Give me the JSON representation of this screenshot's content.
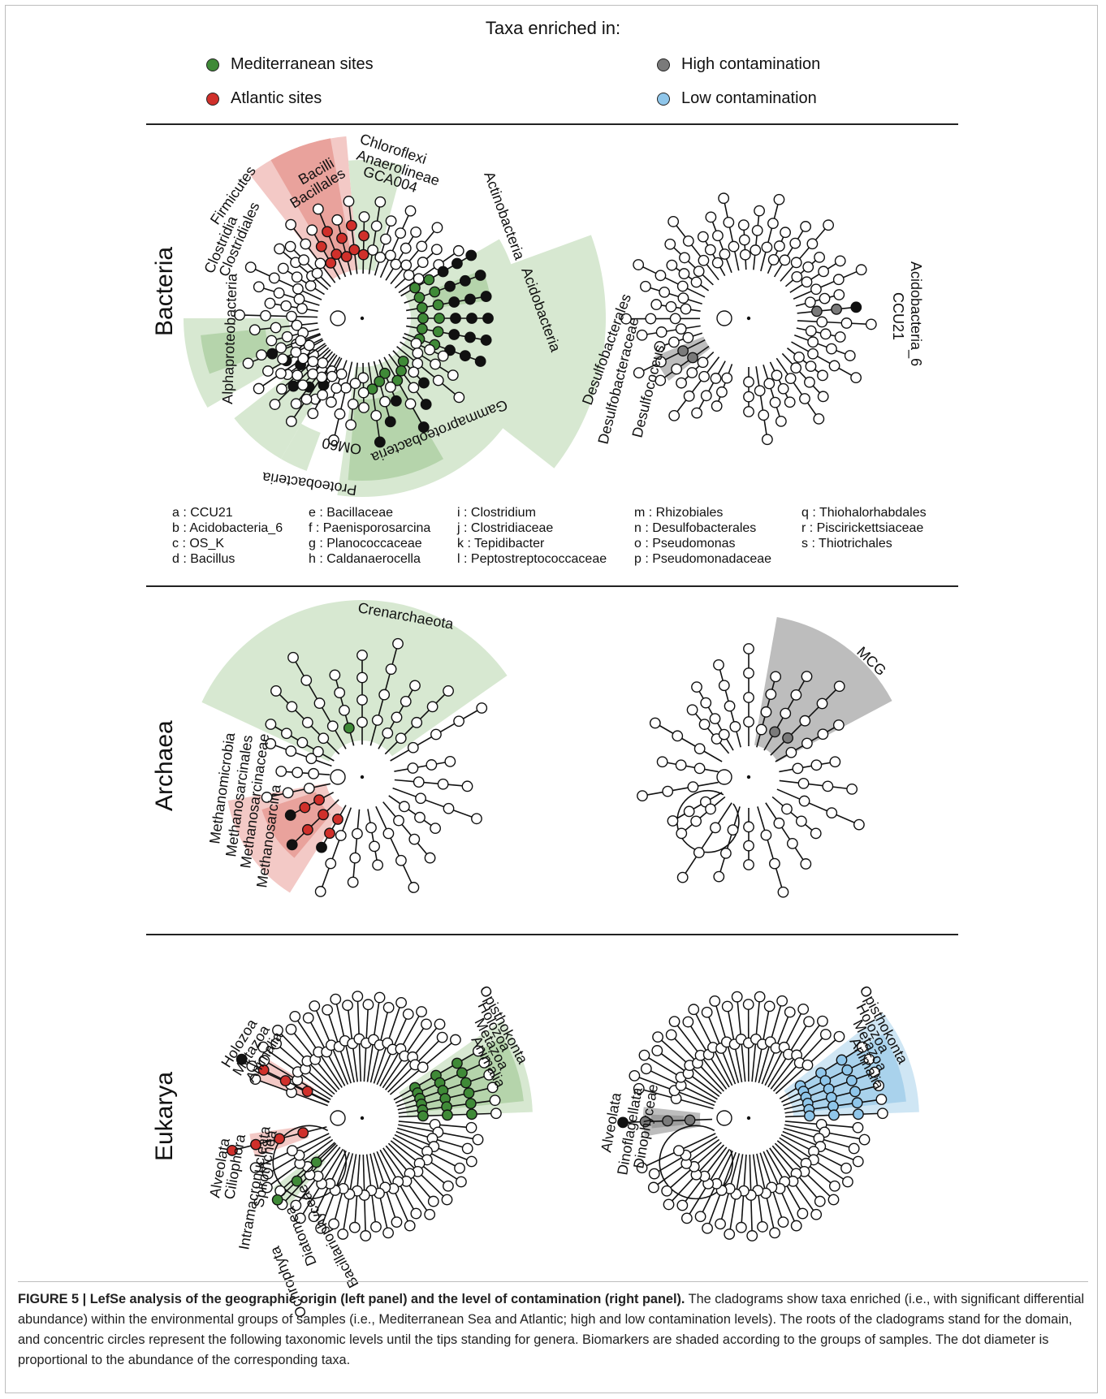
{
  "legend": {
    "title": "Taxa enriched in:",
    "items": [
      {
        "label": "Mediterranean sites",
        "color": "#3f8a37"
      },
      {
        "label": "Atlantic sites",
        "color": "#d0302b"
      },
      {
        "label": "High contamination",
        "color": "#7a7a7a"
      },
      {
        "label": "Low contamination",
        "color": "#8fc6ea"
      }
    ]
  },
  "rows": {
    "bacteria": "Bacteria",
    "archaea": "Archaea",
    "eukarya": "Eukarya"
  },
  "bacteria_left_labels": {
    "chloroflexi": "Chloroflexi",
    "anaerolineae": "Anaerolineae",
    "gca004": "GCA004",
    "actinobacteria": "Actinobacteria",
    "acidobacteria": "Acidobacteria",
    "firmicutes": "Firmicutes",
    "bacilli": "Bacilli",
    "bacillales": "Bacillales",
    "clostridia": "Clostridia",
    "clostridiales": "Clostridiales",
    "alphaproteobacteria": "Alphaproteobacteria",
    "om60": "OM60",
    "proteobacteria": "Proteobacteria",
    "gammaproteobacteria": "Gammaproteobacteria",
    "letters": [
      "a",
      "b",
      "c",
      "d",
      "e",
      "f",
      "g",
      "h",
      "i",
      "j",
      "k",
      "l",
      "m",
      "n",
      "o",
      "p",
      "q",
      "r",
      "s"
    ]
  },
  "bacteria_right_labels": {
    "acidobacteria_6": "Acidobacteria_6",
    "ccu21": "CCU21",
    "desulfobacterales": "Desulfobacterales",
    "desulfobacteraceae": "Desulfobacteraceae",
    "desulfococcus": "Desulfococcus"
  },
  "abbreviations": [
    [
      "a : CCU21",
      "b : Acidobacteria_6",
      "c : OS_K",
      "d : Bacillus"
    ],
    [
      "e : Bacillaceae",
      "f : Paenisporosarcina",
      "g : Planococcaceae",
      "h : Caldanaerocella"
    ],
    [
      "i : Clostridium",
      "j : Clostridiaceae",
      "k : Tepidibacter",
      "l : Peptostreptococcaceae"
    ],
    [
      "m : Rhizobiales",
      "n : Desulfobacterales",
      "o : Pseudomonas",
      "p : Pseudomonadaceae"
    ],
    [
      "q : Thiohalorhabdales",
      "r : Piscirickettsiaceae",
      "s : Thiotrichales"
    ]
  ],
  "archaea_left_labels": {
    "crenarchaeota": "Crenarchaeota",
    "methanomicrobia": "Methanomicrobia",
    "methanosarcinales": "Methanosarcinales",
    "methanosarcinaceae": "Methanosarcinaceae",
    "methanosarcina": "Methanosarcina"
  },
  "archaea_right_labels": {
    "mcg": "MCG"
  },
  "eukarya_left_labels": {
    "opisthokonta": "Opisthokonta",
    "holozoa_r": "Holozoa",
    "metazoa_r": "Metazoa",
    "animalia_r": "Animalia",
    "holozoa_l": "Holozoa",
    "metazoa_l": "Metazoa",
    "animalia_l": "Animalia",
    "alveolata": "Alveolata",
    "ciliophora": "Ciliophora",
    "intramacronucleata": "Intramacronucleata",
    "spirotrichea": "Spirotrichea",
    "ochrophyta": "Ochrophyta",
    "diatomea": "Diatomea",
    "bacillariophyceae": "Bacillariophyceae"
  },
  "eukarya_right_labels": {
    "opisthokonta": "Opisthokonta",
    "holozoa": "Holozoa",
    "metazoa": "Metazoa",
    "animalia": "Animalia",
    "alveolata": "Alveolata",
    "dinoflagellata": "Dinoflagellata",
    "dinophyceae": "Dinophyceae"
  },
  "caption": {
    "bold": "FIGURE 5 | LefSe analysis of the geographic origin (left panel) and the level of contamination (right panel).",
    "text": " The cladograms show taxa enriched (i.e., with significant differential abundance) within the environmental groups of samples (i.e., Mediterranean Sea and Atlantic; high and low contamination levels). The roots of the cladograms stand for the domain, and concentric circles represent the following taxonomic levels until the tips standing for genera. Biomarkers are shaded according to the groups of samples. The dot diameter is proportional to the abundance of the corresponding taxa."
  }
}
